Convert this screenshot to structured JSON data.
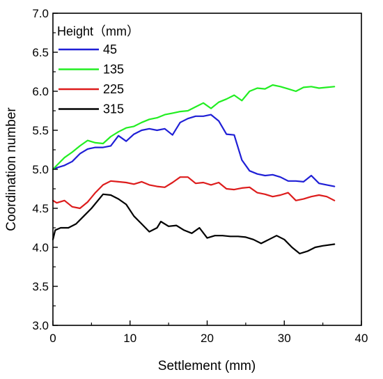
{
  "chart_data": {
    "type": "line",
    "title": "",
    "xlabel": "Settlement  (mm)",
    "ylabel": "Coordination number",
    "xlim": [
      0,
      40
    ],
    "ylim": [
      3.0,
      7.0
    ],
    "xticks": [
      "0",
      "10",
      "20",
      "30",
      "40"
    ],
    "yticks": [
      "3.0",
      "3.5",
      "4.0",
      "4.5",
      "5.0",
      "5.5",
      "6.0",
      "6.5",
      "7.0"
    ],
    "grid": false,
    "legend": {
      "title": "Height（mm）",
      "placement": "top-left"
    },
    "series": [
      {
        "name": "45",
        "color": "#1f1fd6",
        "x": [
          0,
          0.5,
          1.5,
          2.5,
          3.5,
          4.5,
          5.5,
          6.5,
          7.5,
          8.5,
          9.5,
          10.5,
          11.5,
          12.5,
          13.5,
          14.5,
          15.5,
          16.5,
          17.5,
          18.5,
          19.5,
          20.5,
          21.5,
          22.5,
          23.5,
          24.5,
          25.5,
          26.5,
          27.5,
          28.5,
          29.5,
          30.5,
          31.5,
          32.5,
          33.5,
          34.5,
          35.5,
          36.5
        ],
        "y": [
          5.0,
          5.02,
          5.05,
          5.1,
          5.2,
          5.26,
          5.28,
          5.28,
          5.3,
          5.43,
          5.36,
          5.45,
          5.5,
          5.52,
          5.5,
          5.52,
          5.44,
          5.6,
          5.65,
          5.68,
          5.68,
          5.7,
          5.62,
          5.45,
          5.44,
          5.12,
          4.98,
          4.94,
          4.92,
          4.93,
          4.9,
          4.85,
          4.85,
          4.84,
          4.92,
          4.82,
          4.8,
          4.78
        ]
      },
      {
        "name": "135",
        "color": "#22ee22",
        "x": [
          0,
          0.5,
          1.5,
          2.5,
          3.5,
          4.5,
          5.5,
          6.5,
          7.5,
          8.5,
          9.5,
          10.5,
          11.5,
          12.5,
          13.5,
          14.5,
          15.5,
          16.5,
          17.5,
          18.5,
          19.5,
          20.5,
          21.5,
          22.5,
          23.5,
          24.5,
          25.5,
          26.5,
          27.5,
          28.5,
          29.5,
          30.5,
          31.5,
          32.5,
          33.5,
          34.5,
          35.5,
          36.5
        ],
        "y": [
          5.0,
          5.05,
          5.15,
          5.22,
          5.3,
          5.37,
          5.34,
          5.33,
          5.42,
          5.48,
          5.53,
          5.55,
          5.6,
          5.64,
          5.66,
          5.7,
          5.72,
          5.74,
          5.75,
          5.8,
          5.85,
          5.78,
          5.86,
          5.9,
          5.95,
          5.88,
          6.0,
          6.04,
          6.03,
          6.08,
          6.06,
          6.03,
          6.0,
          6.05,
          6.06,
          6.04,
          6.05,
          6.06
        ]
      },
      {
        "name": "225",
        "color": "#dd1c1c",
        "x": [
          0,
          0.5,
          1.5,
          2.5,
          3.5,
          4.5,
          5.5,
          6.5,
          7.5,
          8.5,
          9.5,
          10.5,
          11.5,
          12.5,
          13.5,
          14.5,
          15.5,
          16.5,
          17.5,
          18.5,
          19.5,
          20.5,
          21.5,
          22.5,
          23.5,
          24.5,
          25.5,
          26.5,
          27.5,
          28.5,
          29.5,
          30.5,
          31.5,
          32.5,
          33.5,
          34.5,
          35.5,
          36.5
        ],
        "y": [
          4.6,
          4.57,
          4.6,
          4.52,
          4.5,
          4.58,
          4.7,
          4.8,
          4.85,
          4.84,
          4.83,
          4.81,
          4.84,
          4.8,
          4.78,
          4.77,
          4.83,
          4.9,
          4.9,
          4.82,
          4.83,
          4.8,
          4.83,
          4.75,
          4.74,
          4.76,
          4.77,
          4.7,
          4.68,
          4.65,
          4.67,
          4.7,
          4.6,
          4.62,
          4.65,
          4.67,
          4.65,
          4.6
        ]
      },
      {
        "name": "315",
        "color": "#000000",
        "x": [
          0,
          0.3,
          1.0,
          2.0,
          3.0,
          4.0,
          5.0,
          6.5,
          7.5,
          8.5,
          9.5,
          10.5,
          11.5,
          12.5,
          13.5,
          14.0,
          15.0,
          16.0,
          17.0,
          18.0,
          19.0,
          20.0,
          21.0,
          22.0,
          23.0,
          24.0,
          25.0,
          26.0,
          27.0,
          28.0,
          29.0,
          30.0,
          31.0,
          32.0,
          33.0,
          34.0,
          35.0,
          36.5
        ],
        "y": [
          4.1,
          4.22,
          4.25,
          4.25,
          4.3,
          4.4,
          4.5,
          4.68,
          4.67,
          4.62,
          4.55,
          4.4,
          4.3,
          4.2,
          4.25,
          4.33,
          4.27,
          4.28,
          4.22,
          4.18,
          4.25,
          4.12,
          4.15,
          4.15,
          4.14,
          4.14,
          4.13,
          4.1,
          4.05,
          4.1,
          4.15,
          4.1,
          4.0,
          3.92,
          3.95,
          4.0,
          4.02,
          4.04
        ]
      }
    ]
  }
}
